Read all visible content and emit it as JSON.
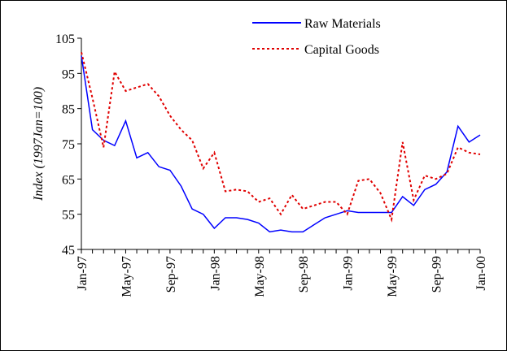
{
  "chart_data": {
    "type": "line",
    "y_label": "Index (1997Jan=100)",
    "categories": [
      "Jan-97",
      null,
      null,
      null,
      "May-97",
      null,
      null,
      null,
      "Sep-97",
      null,
      null,
      null,
      "Jan-98",
      null,
      null,
      null,
      "May-98",
      null,
      null,
      null,
      "Sep-98",
      null,
      null,
      null,
      "Jan-99",
      null,
      null,
      null,
      "May-99",
      null,
      null,
      null,
      "Sep-99",
      null,
      null,
      null,
      "Jan-00"
    ],
    "series": [
      {
        "name": "Raw Materials",
        "color": "#0000ff",
        "dash": "solid",
        "values": [
          100,
          79,
          76,
          74.5,
          81.5,
          71,
          72.5,
          68.5,
          67.5,
          63,
          56.5,
          55,
          51,
          54,
          54,
          53.5,
          52.5,
          50,
          50.5,
          50,
          50,
          52,
          54,
          55,
          56,
          55.5,
          55.5,
          55.5,
          55.5,
          60,
          57.5,
          62,
          63.5,
          67,
          80,
          75.5,
          77.5
        ]
      },
      {
        "name": "Capital Goods",
        "color": "#e00000",
        "dash": "dotted",
        "values": [
          101,
          88,
          74,
          95.5,
          90,
          91,
          92,
          88.5,
          83,
          79,
          76,
          68,
          72.5,
          61.5,
          62,
          61.5,
          58.5,
          59.5,
          55,
          60.5,
          56.5,
          57.5,
          58.5,
          58.5,
          55,
          64.5,
          65,
          61,
          53.5,
          75.5,
          59,
          66,
          65,
          66.5,
          74,
          72.5,
          72
        ]
      }
    ],
    "ylim": [
      45,
      105
    ],
    "yticks": [
      45,
      55,
      65,
      75,
      85,
      95,
      105
    ],
    "legend": "top-right"
  }
}
